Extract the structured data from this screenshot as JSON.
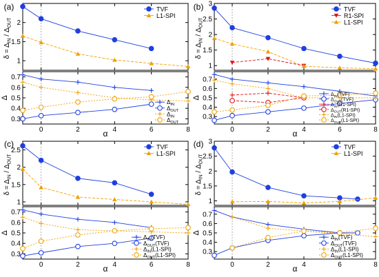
{
  "colors": {
    "tvf": "#1f3fe0",
    "spi": "#f0a000",
    "r1": "#e0101a",
    "axis": "#000000",
    "grid": "#9a9a9a"
  },
  "chart_data": [
    {
      "panel_label": "(a)",
      "type": "line",
      "xlabel": "α",
      "x_ticks": [
        0,
        2,
        4,
        6,
        8
      ],
      "xlim": [
        -1,
        8
      ],
      "top": {
        "ylabel": "δ = Δ_IN / Δ_OUT",
        "ylim": [
          0.75,
          2.5
        ],
        "y_ticks": [
          1,
          1.5,
          2
        ],
        "legend": [
          "TVF",
          "L1-SPI"
        ],
        "series": [
          {
            "name": "TVF",
            "color_key": "tvf",
            "marker": "circle",
            "style": "solid",
            "x": [
              -1,
              0,
              2,
              4,
              6
            ],
            "y": [
              2.42,
              2.1,
              1.78,
              1.55,
              1.32
            ]
          },
          {
            "name": "L1-SPI",
            "color_key": "spi",
            "marker": "triangle",
            "style": "dashed",
            "x": [
              -1,
              0,
              2,
              4,
              6,
              8
            ],
            "y": [
              1.65,
              1.48,
              1.18,
              1.02,
              0.93,
              0.85
            ]
          }
        ]
      },
      "bottom": {
        "ylabel": "Δ",
        "ylim": [
          0.25,
          0.75
        ],
        "y_ticks": [
          0.3,
          0.4,
          0.5,
          0.6,
          0.7
        ],
        "legend": [
          "Δ_IN",
          "Δ_OUT",
          "Δ_IN",
          "Δ_OUT"
        ],
        "series": [
          {
            "name": "Δ_IN",
            "color_key": "tvf",
            "marker": "plus",
            "style": "solid",
            "x": [
              -1,
              0,
              2,
              4,
              6
            ],
            "y": [
              0.72,
              0.68,
              0.65,
              0.6,
              0.57
            ]
          },
          {
            "name": "Δ_OUT",
            "color_key": "tvf",
            "marker": "ocircle",
            "style": "solid",
            "x": [
              -1,
              0,
              2,
              4,
              6
            ],
            "y": [
              0.3,
              0.33,
              0.36,
              0.39,
              0.44
            ]
          },
          {
            "name": "Δ_IN",
            "color_key": "spi",
            "marker": "plus",
            "style": "dotted",
            "x": [
              -1,
              0,
              2,
              4,
              6,
              8
            ],
            "y": [
              0.65,
              0.6,
              0.55,
              0.5,
              0.48,
              0.47
            ]
          },
          {
            "name": "Δ_OUT",
            "color_key": "spi",
            "marker": "ocircle",
            "style": "dotted",
            "x": [
              -1,
              0,
              2,
              4,
              6,
              8
            ],
            "y": [
              0.38,
              0.41,
              0.46,
              0.49,
              0.51,
              0.56
            ]
          }
        ]
      }
    },
    {
      "panel_label": "(b)",
      "type": "line",
      "xlabel": "α",
      "x_ticks": [
        0,
        2,
        4,
        6,
        8
      ],
      "xlim": [
        -1,
        8
      ],
      "top": {
        "ylabel": "δ = Δ_IN / Δ_OUT",
        "ylim": [
          0.85,
          3.0
        ],
        "y_ticks": [
          1,
          1.5,
          2,
          2.5,
          3
        ],
        "legend": [
          "TVF",
          "R1-SPI",
          "L1-SPI"
        ],
        "series": [
          {
            "name": "TVF",
            "color_key": "tvf",
            "marker": "circle",
            "style": "solid",
            "x": [
              -1,
              0,
              2,
              4,
              6,
              8
            ],
            "y": [
              2.85,
              2.22,
              1.9,
              1.55,
              1.3,
              1.08
            ]
          },
          {
            "name": "R1-SPI",
            "color_key": "r1",
            "marker": "dtriangle",
            "style": "dashed",
            "x": [
              0,
              2,
              4
            ],
            "y": [
              1.1,
              1.22,
              1.0
            ]
          },
          {
            "name": "L1-SPI",
            "color_key": "spi",
            "marker": "triangle",
            "style": "dashed",
            "x": [
              -1,
              0,
              2,
              4,
              6,
              8
            ],
            "y": [
              1.88,
              1.7,
              1.45,
              0.98,
              0.93,
              0.9
            ]
          }
        ]
      },
      "bottom": {
        "ylabel": "Δ",
        "ylim": [
          0.22,
          0.78
        ],
        "y_ticks": [
          0.3,
          0.4,
          0.5,
          0.6,
          0.7
        ],
        "legend": [
          "Δ_IN(TVF)",
          "Δ_OUT(TVF)",
          "Δ_IN(R1-SPI)",
          "Δ_OUT(R1-SPI)",
          "Δ_IN(L1-SPI)",
          "Δ_OUT(L1-SPI)"
        ],
        "series": [
          {
            "name": "Δ_IN(TVF)",
            "color_key": "tvf",
            "marker": "plus",
            "style": "solid",
            "x": [
              -1,
              0,
              2,
              4,
              6,
              8
            ],
            "y": [
              0.75,
              0.7,
              0.66,
              0.62,
              0.57,
              0.52
            ]
          },
          {
            "name": "Δ_OUT(TVF)",
            "color_key": "tvf",
            "marker": "ocircle",
            "style": "solid",
            "x": [
              -1,
              0,
              2,
              4,
              6,
              8
            ],
            "y": [
              0.26,
              0.31,
              0.35,
              0.39,
              0.44,
              0.48
            ]
          },
          {
            "name": "Δ_IN(R1-SPI)",
            "color_key": "r1",
            "marker": "plus",
            "style": "dashed",
            "x": [
              0,
              2,
              4
            ],
            "y": [
              0.53,
              0.55,
              0.5
            ]
          },
          {
            "name": "Δ_OUT(R1-SPI)",
            "color_key": "r1",
            "marker": "ocircle",
            "style": "dashed",
            "x": [
              0,
              2,
              4
            ],
            "y": [
              0.47,
              0.45,
              0.5
            ]
          },
          {
            "name": "Δ_IN(L1-SPI)",
            "color_key": "spi",
            "marker": "plus",
            "style": "dotted",
            "x": [
              -1,
              0,
              2,
              4,
              6,
              8
            ],
            "y": [
              0.69,
              0.65,
              0.6,
              0.5,
              0.5,
              0.5
            ]
          },
          {
            "name": "Δ_OUT(L1-SPI)",
            "color_key": "spi",
            "marker": "ocircle",
            "style": "dotted",
            "x": [
              -1,
              0,
              2,
              4,
              6,
              8
            ],
            "y": [
              0.35,
              0.37,
              0.42,
              0.52,
              0.53,
              0.55
            ]
          }
        ]
      }
    },
    {
      "panel_label": "(c)",
      "type": "line",
      "xlabel": "α",
      "x_ticks": [
        0,
        2,
        4,
        6,
        8
      ],
      "xlim": [
        -1,
        8
      ],
      "top": {
        "ylabel": "δ = Δ_IN / Δ_OUT",
        "ylim": [
          0.9,
          2.75
        ],
        "y_ticks": [
          1,
          1.5,
          2,
          2.5
        ],
        "legend": [
          "TVF",
          "L1-SPI"
        ],
        "series": [
          {
            "name": "TVF",
            "color_key": "tvf",
            "marker": "circle",
            "style": "solid",
            "x": [
              -1,
              0,
              2,
              4,
              6
            ],
            "y": [
              2.62,
              2.2,
              1.68,
              1.55,
              1.22
            ]
          },
          {
            "name": "L1-SPI",
            "color_key": "spi",
            "marker": "triangle",
            "style": "dashed",
            "x": [
              -1,
              0,
              2,
              4,
              6,
              8
            ],
            "y": [
              1.95,
              1.42,
              1.14,
              1.07,
              1.0,
              0.93
            ]
          }
        ]
      },
      "bottom": {
        "ylabel": "Δ",
        "ylim": [
          0.25,
          0.75
        ],
        "y_ticks": [
          0.3,
          0.4,
          0.5,
          0.6,
          0.7
        ],
        "legend": [
          "Δ_IN(TVF)",
          "Δ_OUT(TVF)",
          "Δ_IN(L1-SPI)",
          "Δ_OUT(L1-SPI)"
        ],
        "series": [
          {
            "name": "Δ_IN(TVF)",
            "color_key": "tvf",
            "marker": "plus",
            "style": "solid",
            "x": [
              -1,
              0,
              2,
              4,
              6
            ],
            "y": [
              0.72,
              0.68,
              0.63,
              0.6,
              0.55
            ]
          },
          {
            "name": "Δ_OUT(TVF)",
            "color_key": "tvf",
            "marker": "ocircle",
            "style": "solid",
            "x": [
              -1,
              0,
              2,
              4,
              6
            ],
            "y": [
              0.28,
              0.31,
              0.37,
              0.4,
              0.45
            ]
          },
          {
            "name": "Δ_IN(L1-SPI)",
            "color_key": "spi",
            "marker": "plus",
            "style": "dotted",
            "x": [
              -1,
              0,
              2,
              4,
              6,
              8
            ],
            "y": [
              0.65,
              0.59,
              0.53,
              0.52,
              0.51,
              0.5
            ]
          },
          {
            "name": "Δ_OUT(L1-SPI)",
            "color_key": "spi",
            "marker": "ocircle",
            "style": "dotted",
            "x": [
              -1,
              0,
              2,
              4,
              6,
              8
            ],
            "y": [
              0.35,
              0.42,
              0.48,
              0.52,
              0.54,
              0.55
            ]
          }
        ]
      }
    },
    {
      "panel_label": "(d)",
      "type": "line",
      "xlabel": "α",
      "x_ticks": [
        0,
        2,
        4,
        6,
        8
      ],
      "xlim": [
        -1,
        8
      ],
      "top": {
        "ylabel": "δ = Δ_IN / Δ_OUT",
        "ylim": [
          0.85,
          3.0
        ],
        "y_ticks": [
          1,
          1.5,
          2,
          2.5,
          3
        ],
        "legend": [
          "TVF",
          "L1-SPI"
        ],
        "series": [
          {
            "name": "TVF",
            "color_key": "tvf",
            "marker": "circle",
            "style": "solid",
            "x": [
              -1,
              0,
              2,
              4,
              6,
              7
            ],
            "y": [
              2.78,
              1.97,
              1.45,
              1.17,
              1.1,
              1.06
            ]
          },
          {
            "name": "L1-SPI",
            "color_key": "spi",
            "marker": "triangle",
            "style": "dashed",
            "x": [
              0,
              2,
              4,
              6,
              8
            ],
            "y": [
              0.97,
              0.98,
              0.93,
              0.98,
              1.1
            ]
          }
        ]
      },
      "bottom": {
        "ylabel": "Δ",
        "ylim": [
          0.22,
          0.78
        ],
        "y_ticks": [
          0.3,
          0.4,
          0.5,
          0.6,
          0.7
        ],
        "legend": [
          "Δ_IN(TVF)",
          "Δ_OUT(TVF)",
          "Δ_IN(L1-SPI)",
          "Δ_OUT(L1-SPI)"
        ],
        "series": [
          {
            "name": "Δ_IN(TVF)",
            "color_key": "tvf",
            "marker": "plus",
            "style": "solid",
            "x": [
              -1,
              0,
              2,
              4,
              6,
              7
            ],
            "y": [
              0.74,
              0.67,
              0.59,
              0.54,
              0.5,
              0.5
            ]
          },
          {
            "name": "Δ_OUT(TVF)",
            "color_key": "tvf",
            "marker": "ocircle",
            "style": "solid",
            "x": [
              -1,
              0,
              2,
              4,
              6,
              7
            ],
            "y": [
              0.26,
              0.34,
              0.42,
              0.47,
              0.5,
              0.5
            ]
          },
          {
            "name": "Δ_IN(L1-SPI)",
            "color_key": "spi",
            "marker": "plus",
            "style": "dotted",
            "x": [
              0,
              2,
              4,
              6,
              8
            ],
            "y": [
              0.67,
              0.55,
              0.52,
              0.49,
              0.46
            ]
          },
          {
            "name": "Δ_OUT(L1-SPI)",
            "color_key": "spi",
            "marker": "ocircle",
            "style": "dotted",
            "x": [
              0,
              2,
              4,
              6,
              8
            ],
            "y": [
              0.34,
              0.45,
              0.52,
              0.5,
              0.55
            ]
          }
        ]
      }
    }
  ]
}
